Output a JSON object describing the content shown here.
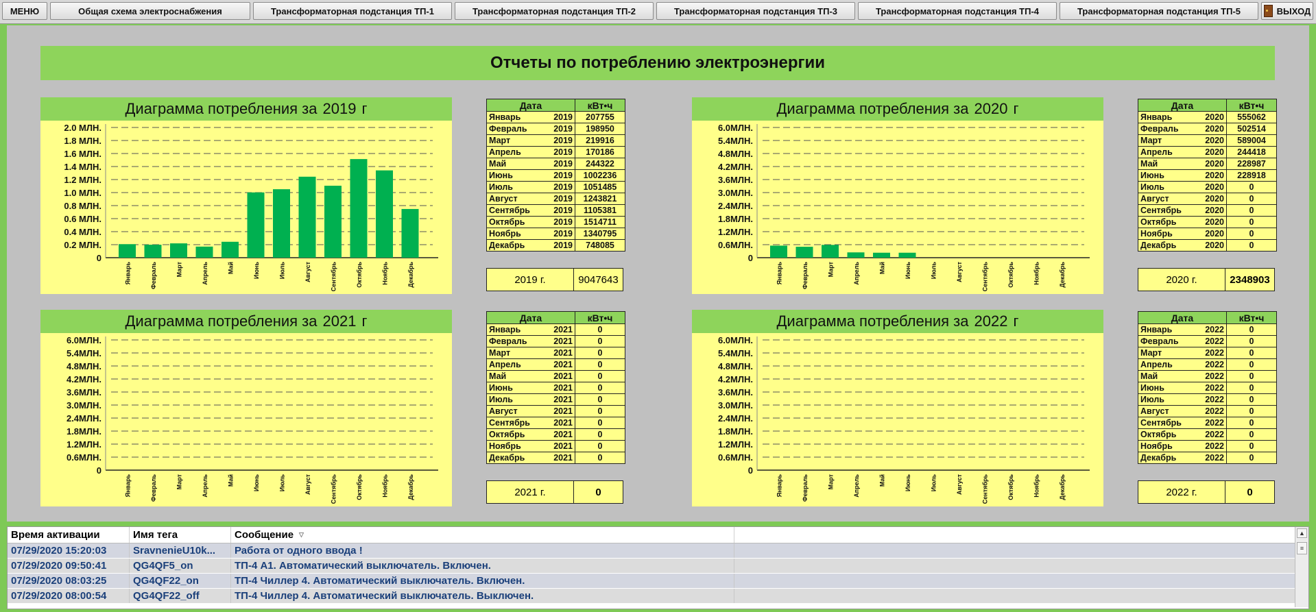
{
  "nav": {
    "menu": "МЕНЮ",
    "items": [
      "Общая схема электроснабжения",
      "Трансформаторная подстанция ТП-1",
      "Трансформаторная подстанция ТП-2",
      "Трансформаторная подстанция ТП-3",
      "Трансформаторная подстанция ТП-4",
      "Трансформаторная подстанция ТП-5"
    ],
    "exit": "ВЫХОД",
    "exit_icon": "door-icon"
  },
  "report_title": "Отчеты по потреблению электроэнергии",
  "chart_title_prefix": "Диаграмма потребления за",
  "year_suffix": "г",
  "table_headers": {
    "date": "Дата",
    "kwh": "кВт•ч"
  },
  "months": [
    "Январь",
    "Февраль",
    "Март",
    "Апрель",
    "Май",
    "Июнь",
    "Июль",
    "Август",
    "Сентябрь",
    "Октябрь",
    "Ноябрь",
    "Декабрь"
  ],
  "years": [
    {
      "year": "2019",
      "values": [
        207755,
        198950,
        219916,
        170186,
        244322,
        1002236,
        1051485,
        1243821,
        1105381,
        1514711,
        1340795,
        748085
      ],
      "total_label": "2019 г.",
      "total": "9047643"
    },
    {
      "year": "2020",
      "values": [
        555062,
        502514,
        589004,
        244418,
        228987,
        228918,
        0,
        0,
        0,
        0,
        0,
        0
      ],
      "total_label": "2020 г.",
      "total": "2348903"
    },
    {
      "year": "2021",
      "values": [
        0,
        0,
        0,
        0,
        0,
        0,
        0,
        0,
        0,
        0,
        0,
        0
      ],
      "total_label": "2021 г.",
      "total": "0"
    },
    {
      "year": "2022",
      "values": [
        0,
        0,
        0,
        0,
        0,
        0,
        0,
        0,
        0,
        0,
        0,
        0
      ],
      "total_label": "2022 г.",
      "total": "0"
    }
  ],
  "chart_data": [
    {
      "type": "bar",
      "title": "Диаграмма потребления за 2019 г",
      "categories": [
        "Январь",
        "Февраль",
        "Март",
        "Апрель",
        "Май",
        "Июнь",
        "Июль",
        "Август",
        "Сентябрь",
        "Октябрь",
        "Ноябрь",
        "Декабрь"
      ],
      "values": [
        207755,
        198950,
        219916,
        170186,
        244322,
        1002236,
        1051485,
        1243821,
        1105381,
        1514711,
        1340795,
        748085
      ],
      "ylim": [
        0,
        2000000
      ],
      "yticks": [
        "0",
        "0.2 МЛН.",
        "0.4 МЛН.",
        "0.6 МЛН.",
        "0.8 МЛН.",
        "1.0 МЛН.",
        "1.2 МЛН.",
        "1.4 МЛН.",
        "1.6 МЛН.",
        "1.8 МЛН.",
        "2.0 МЛН."
      ],
      "grid": true
    },
    {
      "type": "bar",
      "title": "Диаграмма потребления за 2020 г",
      "categories": [
        "Январь",
        "Февраль",
        "Март",
        "Апрель",
        "Май",
        "Июнь",
        "Июль",
        "Август",
        "Сентябрь",
        "Октябрь",
        "Ноябрь",
        "Декабрь"
      ],
      "values": [
        555062,
        502514,
        589004,
        244418,
        228987,
        228918,
        0,
        0,
        0,
        0,
        0,
        0
      ],
      "ylim": [
        0,
        6000000
      ],
      "yticks": [
        "0",
        "0.6МЛН.",
        "1.2МЛН.",
        "1.8МЛН.",
        "2.4МЛН.",
        "3.0МЛН.",
        "3.6МЛН.",
        "4.2МЛН.",
        "4.8МЛН.",
        "5.4МЛН.",
        "6.0МЛН."
      ],
      "grid": true
    },
    {
      "type": "bar",
      "title": "Диаграмма потребления за 2021 г",
      "categories": [
        "Январь",
        "Февраль",
        "Март",
        "Апрель",
        "Май",
        "Июнь",
        "Июль",
        "Август",
        "Сентябрь",
        "Октябрь",
        "Ноябрь",
        "Декабрь"
      ],
      "values": [
        0,
        0,
        0,
        0,
        0,
        0,
        0,
        0,
        0,
        0,
        0,
        0
      ],
      "ylim": [
        0,
        6000000
      ],
      "yticks": [
        "0",
        "0.6МЛН.",
        "1.2МЛН.",
        "1.8МЛН.",
        "2.4МЛН.",
        "3.0МЛН.",
        "3.6МЛН.",
        "4.2МЛН.",
        "4.8МЛН.",
        "5.4МЛН.",
        "6.0МЛН."
      ],
      "grid": true
    },
    {
      "type": "bar",
      "title": "Диаграмма потребления за 2022 г",
      "categories": [
        "Январь",
        "Февраль",
        "Март",
        "Апрель",
        "Май",
        "Июнь",
        "Июль",
        "Август",
        "Сентябрь",
        "Октябрь",
        "Ноябрь",
        "Декабрь"
      ],
      "values": [
        0,
        0,
        0,
        0,
        0,
        0,
        0,
        0,
        0,
        0,
        0,
        0
      ],
      "ylim": [
        0,
        6000000
      ],
      "yticks": [
        "0",
        "0.6МЛН.",
        "1.2МЛН.",
        "1.8МЛН.",
        "2.4МЛН.",
        "3.0МЛН.",
        "3.6МЛН.",
        "4.2МЛН.",
        "4.8МЛН.",
        "5.4МЛН.",
        "6.0МЛН."
      ],
      "grid": true
    }
  ],
  "colors": {
    "bar": "#00b050",
    "panel": "#ffff8a",
    "header": "#8ed45b",
    "grid": "#555555"
  },
  "alarms": {
    "headers": [
      "Время активации",
      "Имя тега",
      "Сообщение"
    ],
    "sort_icon": "sort-down-icon",
    "rows": [
      [
        "07/29/2020 15:20:03",
        "SravnenieU10k...",
        "Работа от одного ввода !"
      ],
      [
        "07/29/2020 09:50:41",
        "QG4QF5_on",
        "ТП-4 А1. Автоматический выключатель. Включен."
      ],
      [
        "07/29/2020 08:03:25",
        "QG4QF22_on",
        "ТП-4 Чиллер 4. Автоматический выключатель. Включен."
      ],
      [
        "07/29/2020 08:00:54",
        "QG4QF22_off",
        "ТП-4 Чиллер 4. Автоматический выключатель. Выключен."
      ]
    ]
  }
}
